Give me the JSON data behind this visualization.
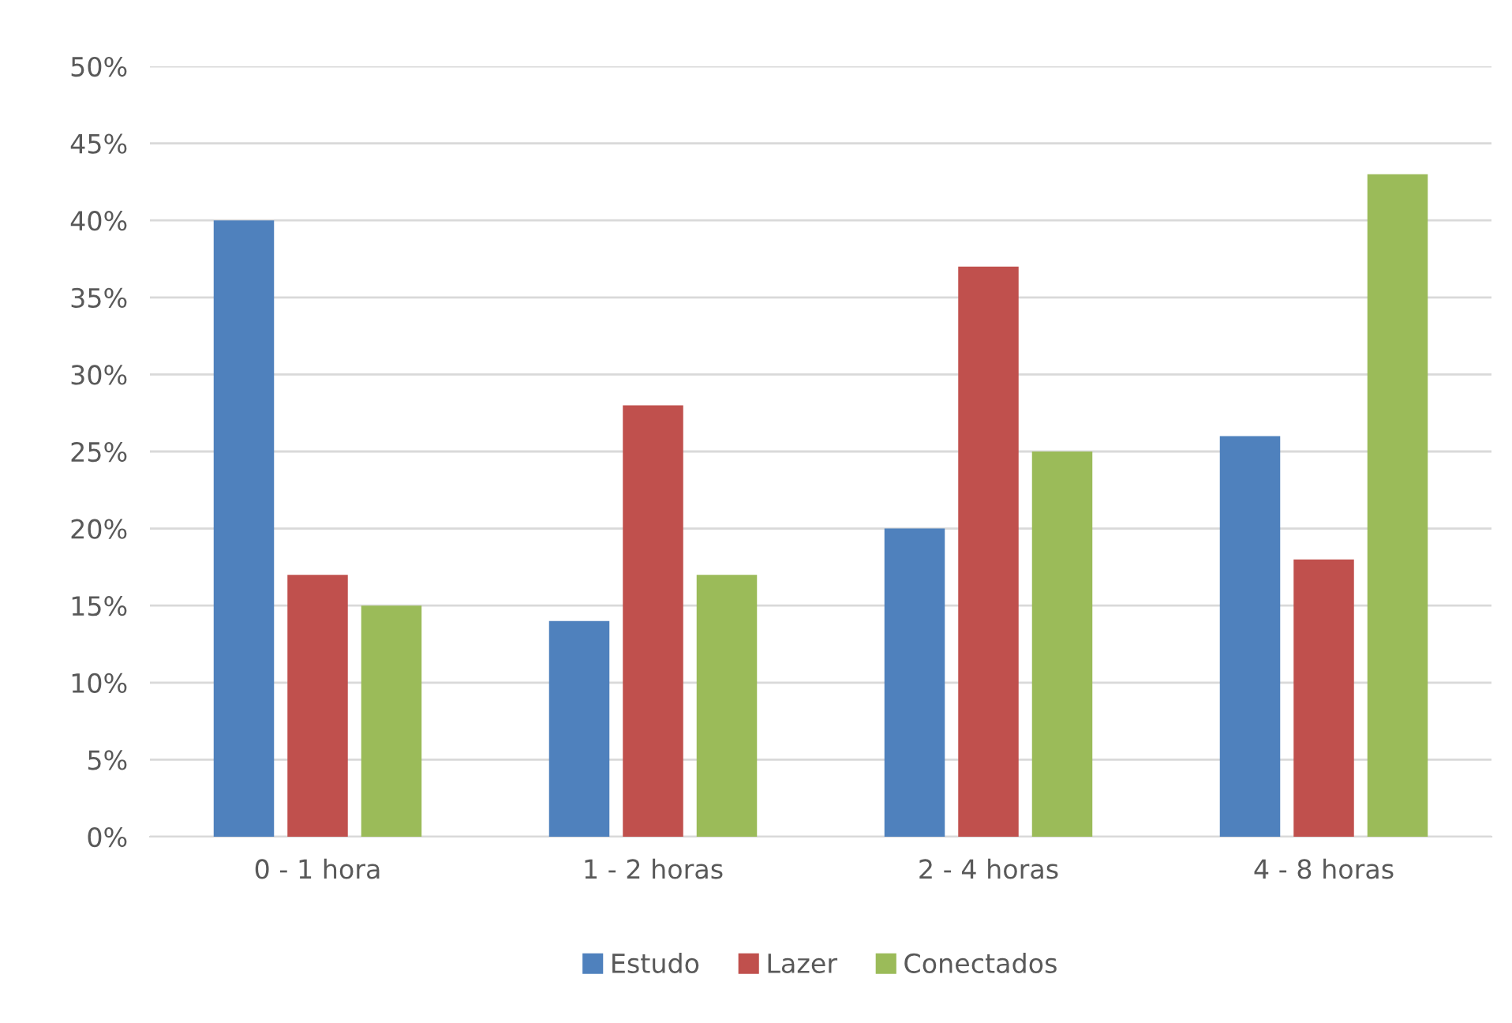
{
  "chart_data": {
    "type": "bar",
    "categories": [
      "0 - 1 hora",
      "1 - 2 horas",
      "2 - 4 horas",
      "4 - 8 horas"
    ],
    "series": [
      {
        "name": "Estudo",
        "color": "#4f81bd",
        "values": [
          40,
          14,
          20,
          26
        ]
      },
      {
        "name": "Lazer",
        "color": "#c0504d",
        "values": [
          17,
          28,
          37,
          18
        ]
      },
      {
        "name": "Conectados",
        "color": "#9bbb59",
        "values": [
          15,
          17,
          25,
          43
        ]
      }
    ],
    "ylim": [
      0,
      50
    ],
    "yticks": [
      {
        "value": 0,
        "label": "0%"
      },
      {
        "value": 5,
        "label": "5%"
      },
      {
        "value": 10,
        "label": "10%"
      },
      {
        "value": 15,
        "label": "15%"
      },
      {
        "value": 20,
        "label": "20%"
      },
      {
        "value": 25,
        "label": "25%"
      },
      {
        "value": 30,
        "label": "30%"
      },
      {
        "value": 35,
        "label": "35%"
      },
      {
        "value": 40,
        "label": "40%"
      },
      {
        "value": 45,
        "label": "45%"
      },
      {
        "value": 50,
        "label": "50%"
      }
    ],
    "grid": "y",
    "legend": "bottom"
  }
}
